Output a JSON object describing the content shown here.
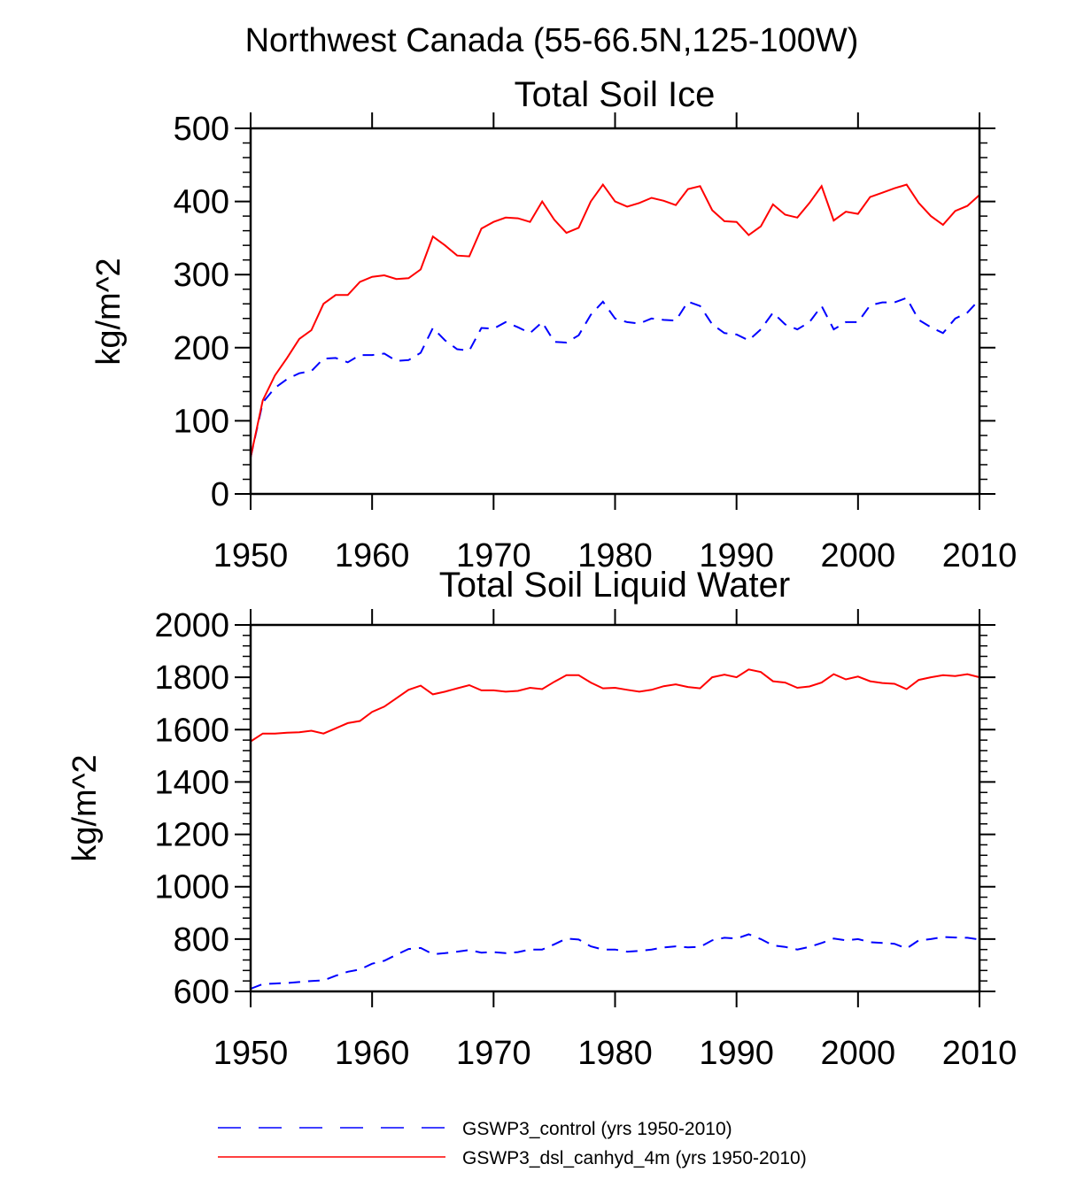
{
  "figure": {
    "title": "Northwest Canada (55-66.5N,125-100W)"
  },
  "legend": {
    "placement": "bottom",
    "entries": [
      {
        "label": "GSWP3_control (yrs 1950-2010)",
        "color": "#0000ff",
        "style": "dashed"
      },
      {
        "label": "GSWP3_dsl_canhyd_4m (yrs 1950-2010)",
        "color": "#ff0000",
        "style": "solid"
      }
    ]
  },
  "chart_data": [
    {
      "type": "line",
      "title": "Total Soil Ice",
      "xlabel": "",
      "ylabel": "kg/m^2",
      "xlim": [
        1950,
        2010
      ],
      "ylim": [
        0,
        500
      ],
      "xticks": [
        "1950",
        "1960",
        "1970",
        "1980",
        "1990",
        "2000",
        "2010"
      ],
      "yticks": [
        "0",
        "100",
        "200",
        "300",
        "400",
        "500"
      ],
      "x": [
        1950,
        1951,
        1952,
        1953,
        1954,
        1955,
        1956,
        1957,
        1958,
        1959,
        1960,
        1961,
        1962,
        1963,
        1964,
        1965,
        1966,
        1967,
        1968,
        1969,
        1970,
        1971,
        1972,
        1973,
        1974,
        1975,
        1976,
        1977,
        1978,
        1979,
        1980,
        1981,
        1982,
        1983,
        1984,
        1985,
        1986,
        1987,
        1988,
        1989,
        1990,
        1991,
        1992,
        1993,
        1994,
        1995,
        1996,
        1997,
        1998,
        1999,
        2000,
        2001,
        2002,
        2003,
        2004,
        2005,
        2006,
        2007,
        2008,
        2009,
        2010
      ],
      "series": [
        {
          "name": "GSWP3_control (yrs 1950-2010)",
          "color": "#0000ff",
          "style": "dashed",
          "values": [
            50,
            125,
            145,
            157,
            165,
            168,
            185,
            186,
            180,
            190,
            190,
            192,
            182,
            183,
            193,
            227,
            210,
            198,
            196,
            227,
            226,
            235,
            228,
            220,
            235,
            208,
            207,
            217,
            245,
            263,
            240,
            235,
            233,
            240,
            238,
            237,
            263,
            257,
            232,
            220,
            218,
            210,
            225,
            248,
            232,
            225,
            235,
            257,
            225,
            235,
            235,
            258,
            262,
            262,
            268,
            238,
            228,
            220,
            240,
            248,
            266
          ]
        },
        {
          "name": "GSWP3_dsl_canhyd_4m (yrs 1950-2010)",
          "color": "#ff0000",
          "style": "solid",
          "values": [
            50,
            128,
            162,
            186,
            212,
            224,
            260,
            272,
            272,
            290,
            297,
            299,
            294,
            295,
            307,
            352,
            340,
            326,
            325,
            363,
            372,
            378,
            377,
            372,
            400,
            375,
            357,
            364,
            400,
            423,
            400,
            393,
            398,
            405,
            401,
            395,
            417,
            421,
            388,
            373,
            372,
            354,
            366,
            396,
            382,
            378,
            398,
            421,
            374,
            386,
            383,
            406,
            412,
            418,
            423,
            398,
            380,
            368,
            387,
            394,
            409
          ]
        }
      ]
    },
    {
      "type": "line",
      "title": "Total Soil Liquid Water",
      "xlabel": "",
      "ylabel": "kg/m^2",
      "xlim": [
        1950,
        2010
      ],
      "ylim": [
        600,
        2000
      ],
      "xticks": [
        "1950",
        "1960",
        "1970",
        "1980",
        "1990",
        "2000",
        "2010"
      ],
      "yticks": [
        "600",
        "800",
        "1000",
        "1200",
        "1400",
        "1600",
        "1800",
        "2000"
      ],
      "x": [
        1950,
        1951,
        1952,
        1953,
        1954,
        1955,
        1956,
        1957,
        1958,
        1959,
        1960,
        1961,
        1962,
        1963,
        1964,
        1965,
        1966,
        1967,
        1968,
        1969,
        1970,
        1971,
        1972,
        1973,
        1974,
        1975,
        1976,
        1977,
        1978,
        1979,
        1980,
        1981,
        1982,
        1983,
        1984,
        1985,
        1986,
        1987,
        1988,
        1989,
        1990,
        1991,
        1992,
        1993,
        1994,
        1995,
        1996,
        1997,
        1998,
        1999,
        2000,
        2001,
        2002,
        2003,
        2004,
        2005,
        2006,
        2007,
        2008,
        2009,
        2010
      ],
      "series": [
        {
          "name": "GSWP3_control (yrs 1950-2010)",
          "color": "#0000ff",
          "style": "dashed",
          "values": [
            610,
            628,
            630,
            632,
            636,
            640,
            642,
            660,
            675,
            684,
            706,
            717,
            740,
            762,
            766,
            742,
            746,
            752,
            758,
            748,
            750,
            746,
            750,
            760,
            760,
            780,
            802,
            798,
            772,
            760,
            760,
            752,
            755,
            760,
            768,
            772,
            768,
            770,
            795,
            805,
            802,
            818,
            800,
            776,
            770,
            760,
            770,
            785,
            802,
            795,
            800,
            788,
            785,
            782,
            764,
            795,
            800,
            808,
            806,
            805,
            798
          ]
        },
        {
          "name": "GSWP3_dsl_canhyd_4m (yrs 1950-2010)",
          "color": "#ff0000",
          "style": "solid",
          "values": [
            1555,
            1585,
            1585,
            1588,
            1590,
            1596,
            1585,
            1605,
            1625,
            1633,
            1668,
            1688,
            1720,
            1752,
            1768,
            1735,
            1745,
            1758,
            1770,
            1750,
            1750,
            1745,
            1748,
            1760,
            1755,
            1783,
            1808,
            1808,
            1780,
            1758,
            1760,
            1752,
            1745,
            1752,
            1766,
            1773,
            1763,
            1758,
            1800,
            1810,
            1800,
            1830,
            1820,
            1785,
            1780,
            1760,
            1765,
            1780,
            1812,
            1792,
            1803,
            1785,
            1778,
            1775,
            1755,
            1790,
            1800,
            1808,
            1805,
            1812,
            1800
          ]
        }
      ]
    }
  ]
}
